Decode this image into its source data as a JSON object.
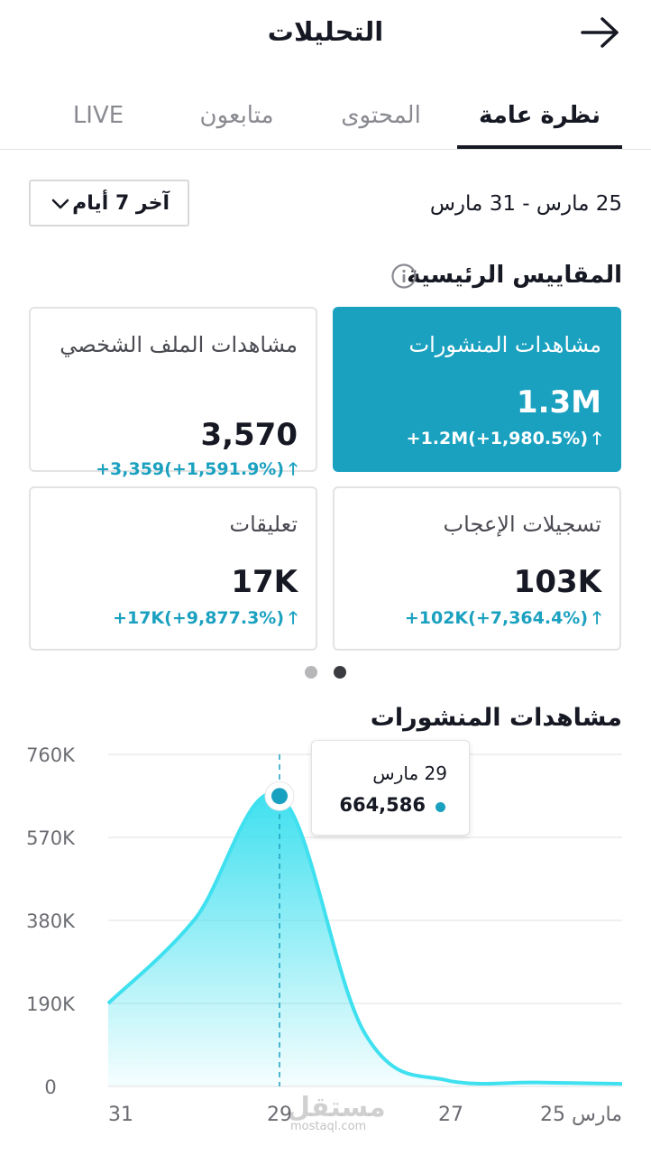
{
  "header": {
    "title": "التحليلات",
    "back_icon": "arrow-right-icon"
  },
  "tabs": [
    {
      "label": "نظرة عامة",
      "active": true
    },
    {
      "label": "المحتوى",
      "active": false
    },
    {
      "label": "متابعون",
      "active": false
    },
    {
      "label": "LIVE",
      "active": false
    }
  ],
  "range": {
    "dates": "25 مارس - 31 مارس",
    "period_label": "آخر 7 أيام"
  },
  "key_metrics": {
    "title": "المقاييس الرئيسية",
    "cards": [
      {
        "label": "مشاهدات المنشورات",
        "value": "1.3M",
        "change": "+1.2M(+1,980.5%)",
        "selected": true
      },
      {
        "label": "مشاهدات الملف الشخصي",
        "value": "3,570",
        "change": "+3,359(+1,591.9%)",
        "selected": false
      },
      {
        "label": "تسجيلات الإعجاب",
        "value": "103K",
        "change": "+102K(+7,364.4%)",
        "selected": false
      },
      {
        "label": "تعليقات",
        "value": "17K",
        "change": "+17K(+9,877.3%)",
        "selected": false
      }
    ]
  },
  "chart_title": "مشاهدات المنشورات",
  "tooltip": {
    "date": "29 مارس",
    "value": "664,586"
  },
  "watermark": {
    "text": "مستقل",
    "sub": "mostaql.com"
  },
  "colors": {
    "accent": "#1ba1c0",
    "line": "#3fe0ef",
    "text": "#161823",
    "muted": "#8a8b91"
  },
  "chart_data": {
    "type": "area",
    "x": [
      "31",
      "30",
      "29",
      "28",
      "27",
      "26",
      "25"
    ],
    "x_tick_labels": [
      "31",
      "29",
      "27",
      "مارس 25"
    ],
    "values": [
      190000,
      380000,
      664586,
      120000,
      12000,
      9000,
      6000
    ],
    "y_tick_labels": [
      "760K",
      "570K",
      "380K",
      "190K",
      "0"
    ],
    "ylim": [
      0,
      760000
    ],
    "grid": true,
    "highlight": {
      "x": "29",
      "value": 664586
    }
  }
}
